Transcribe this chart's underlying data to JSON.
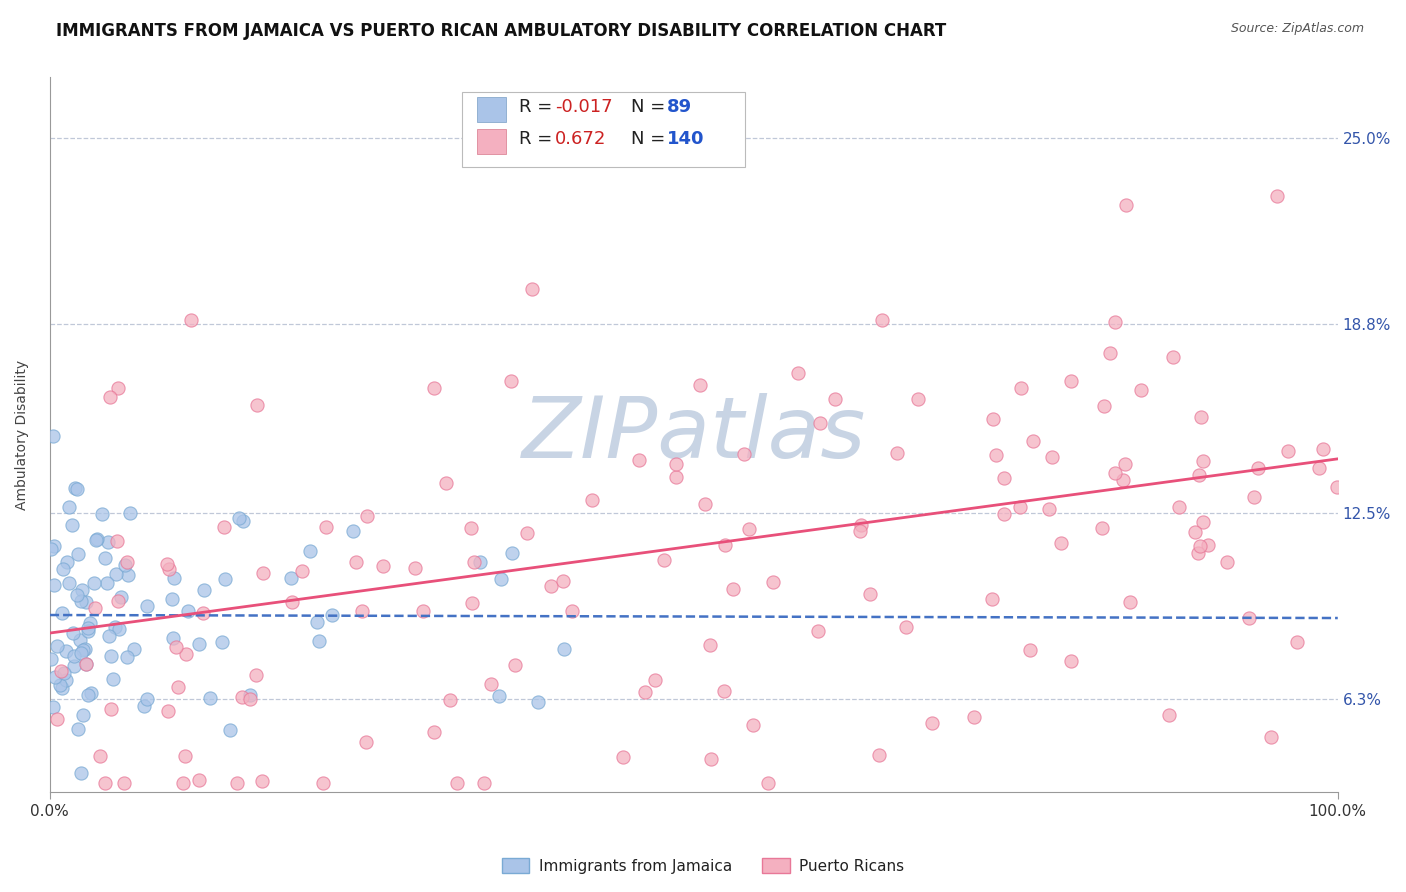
{
  "title": "IMMIGRANTS FROM JAMAICA VS PUERTO RICAN AMBULATORY DISABILITY CORRELATION CHART",
  "source": "Source: ZipAtlas.com",
  "ylabel": "Ambulatory Disability",
  "yticks": [
    0.063,
    0.125,
    0.188,
    0.25
  ],
  "ytick_labels": [
    "6.3%",
    "12.5%",
    "18.8%",
    "25.0%"
  ],
  "xlim": [
    0.0,
    1.0
  ],
  "ylim": [
    0.032,
    0.27
  ],
  "series1": {
    "label": "Immigrants from Jamaica",
    "R": -0.017,
    "N": 89,
    "color": "#aac4e8",
    "edge_color": "#7aaad4",
    "line_color": "#4472c4",
    "R_display": "-0.017",
    "N_display": "89"
  },
  "series2": {
    "label": "Puerto Ricans",
    "R": 0.672,
    "N": 140,
    "color": "#f4b0c0",
    "edge_color": "#e87898",
    "line_color": "#e8507a",
    "R_display": "0.672",
    "N_display": "140"
  },
  "watermark": "ZIPatlas",
  "watermark_color_zip": "#c8d4e4",
  "watermark_color_atlas": "#b8cce0",
  "background_color": "#ffffff",
  "title_fontsize": 12,
  "axis_label_fontsize": 10,
  "tick_fontsize": 11,
  "legend_fontsize": 13,
  "blue_line_y_intercept": 0.091,
  "blue_line_slope": -0.001,
  "pink_line_y_intercept": 0.085,
  "pink_line_slope": 0.058
}
